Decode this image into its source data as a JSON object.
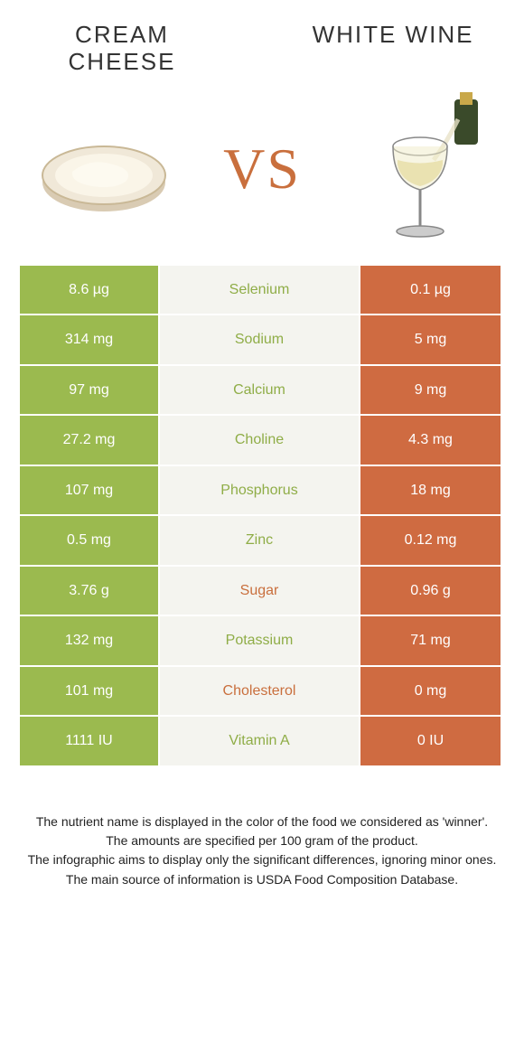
{
  "header": {
    "left_title": "CREAM CHEESE",
    "right_title": "WHITE WINE",
    "vs_label": "VS"
  },
  "colors": {
    "left_cell": "#9bba4f",
    "right_cell": "#cf6b41",
    "mid_cell": "#f4f4ef",
    "left_text": "#8fad47",
    "right_text": "#c96f3d",
    "vs": "#c96f3d"
  },
  "table": {
    "row_height": 55.5,
    "rows": [
      {
        "left": "8.6 µg",
        "label": "Selenium",
        "right": "0.1 µg",
        "label_side": "left"
      },
      {
        "left": "314 mg",
        "label": "Sodium",
        "right": "5 mg",
        "label_side": "left"
      },
      {
        "left": "97 mg",
        "label": "Calcium",
        "right": "9 mg",
        "label_side": "left"
      },
      {
        "left": "27.2 mg",
        "label": "Choline",
        "right": "4.3 mg",
        "label_side": "left"
      },
      {
        "left": "107 mg",
        "label": "Phosphorus",
        "right": "18 mg",
        "label_side": "left"
      },
      {
        "left": "0.5 mg",
        "label": "Zinc",
        "right": "0.12 mg",
        "label_side": "left"
      },
      {
        "left": "3.76 g",
        "label": "Sugar",
        "right": "0.96 g",
        "label_side": "right"
      },
      {
        "left": "132 mg",
        "label": "Potassium",
        "right": "71 mg",
        "label_side": "left"
      },
      {
        "left": "101 mg",
        "label": "Cholesterol",
        "right": "0 mg",
        "label_side": "right"
      },
      {
        "left": "1111 IU",
        "label": "Vitamin A",
        "right": "0 IU",
        "label_side": "left"
      }
    ]
  },
  "footer": {
    "line1": "The nutrient name is displayed in the color of the food we considered as 'winner'.",
    "line2": "The amounts are specified per 100 gram of the product.",
    "line3": "The infographic aims to display only the significant differences, ignoring minor ones.",
    "line4": "The main source of information is USDA Food Composition Database."
  }
}
